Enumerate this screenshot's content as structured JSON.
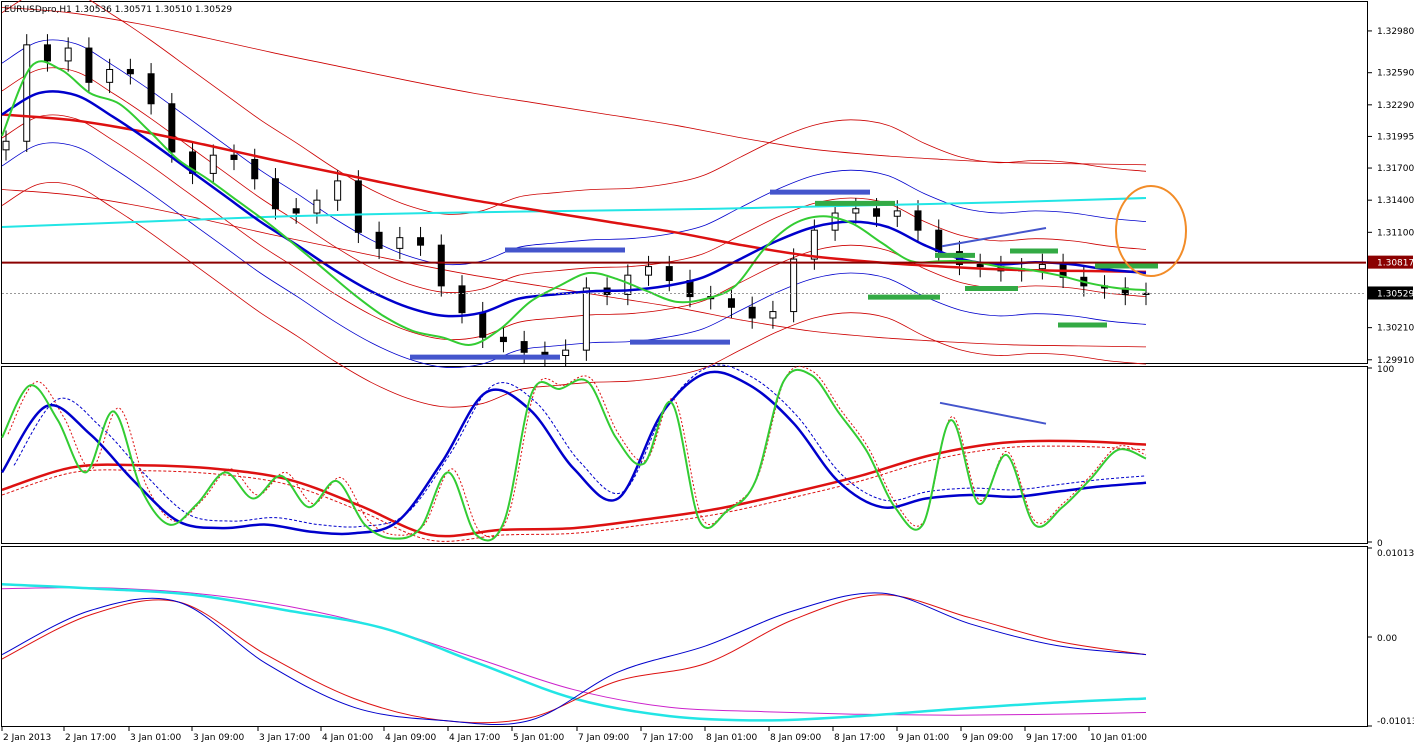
{
  "window": {
    "symbol_line": "EURUSDpro,H1  1.30536 1.30571 1.30510 1.30529"
  },
  "colors": {
    "background": "#ffffff",
    "frame": "#000000",
    "bull_candle": "#ffffff",
    "bear_candle": "#000000",
    "green_line": "#33cc33",
    "blue_line": "#0000cc",
    "red_line": "#dd1111",
    "thin_red": "#cc0000",
    "thin_blue": "#0000cc",
    "cyan_line": "#22e5e5",
    "magenta_line": "#cc22cc",
    "resistance_line": "#8b0000",
    "orange_circle": "#f28c28",
    "marker_blue": "#4455cc",
    "marker_green": "#33aa44",
    "price_tag_bg": "#000000",
    "level_tag_bg": "#8b0000"
  },
  "chart_data": [
    {
      "type": "line",
      "panel": "price",
      "title": "EURUSDpro,H1  1.30536 1.30571 1.30510 1.30529",
      "y_ticks": [
        "1.32980",
        "1.32590",
        "1.32290",
        "1.31995",
        "1.31700",
        "1.31400",
        "1.31100",
        "1.30817",
        "1.30529",
        "1.30210",
        "1.29910"
      ],
      "y_tick_values": [
        1.3298,
        1.3259,
        1.3229,
        1.31995,
        1.317,
        1.314,
        1.311,
        1.30817,
        1.30529,
        1.3021,
        1.2991
      ],
      "ylim": [
        1.2988,
        1.3325
      ],
      "current_price": "1.30529",
      "marked_level": "1.30817",
      "x_tick_labels": [
        "2 Jan 2013",
        "2 Jan 17:00",
        "3 Jan 01:00",
        "3 Jan 09:00",
        "3 Jan 17:00",
        "4 Jan 01:00",
        "4 Jan 09:00",
        "4 Jan 17:00",
        "5 Jan 01:00",
        "7 Jan 09:00",
        "7 Jan 17:00",
        "8 Jan 01:00",
        "8 Jan 09:00",
        "8 Jan 17:00",
        "9 Jan 01:00",
        "9 Jan 09:00",
        "9 Jan 17:00",
        "10 Jan 01:00"
      ],
      "close_prices": [
        1.3195,
        1.3285,
        1.327,
        1.3282,
        1.325,
        1.3262,
        1.3258,
        1.323,
        1.3185,
        1.3165,
        1.3182,
        1.3178,
        1.316,
        1.3132,
        1.3128,
        1.314,
        1.3158,
        1.311,
        1.3095,
        1.3105,
        1.3098,
        1.306,
        1.3035,
        1.3012,
        1.3008,
        1.2998,
        1.2995,
        1.3,
        1.3058,
        1.3052,
        1.307,
        1.3078,
        1.3065,
        1.305,
        1.3048,
        1.304,
        1.303,
        1.3036,
        1.3085,
        1.3112,
        1.3128,
        1.3132,
        1.3125,
        1.313,
        1.3112,
        1.3092,
        1.308,
        1.3078,
        1.3074,
        1.3076,
        1.308,
        1.3068,
        1.306,
        1.3058,
        1.3052,
        1.3053
      ],
      "series": [
        {
          "name": "",
          "role": "green",
          "values": [
            1.32,
            1.3265,
            1.3262,
            1.324,
            1.323,
            1.3205,
            1.3178,
            1.316,
            1.314,
            1.312,
            1.3098,
            1.3075,
            1.3052,
            1.3032,
            1.3018,
            1.3012,
            1.3005,
            1.302,
            1.3045,
            1.306,
            1.3072,
            1.3066,
            1.3055,
            1.3045,
            1.3048,
            1.306,
            1.3095,
            1.3118,
            1.3125,
            1.3118,
            1.31,
            1.3083,
            1.3083,
            1.3083,
            1.3078,
            1.3075,
            1.307,
            1.3063,
            1.3058,
            1.3056
          ]
        },
        {
          "name": "",
          "role": "blue",
          "values": [
            1.322,
            1.324,
            1.3238,
            1.3218,
            1.3195,
            1.317,
            1.3145,
            1.312,
            1.3098,
            1.3075,
            1.3055,
            1.304,
            1.3032,
            1.3035,
            1.3048,
            1.3052,
            1.3055,
            1.3056,
            1.306,
            1.3068,
            1.3085,
            1.3102,
            1.3115,
            1.312,
            1.3115,
            1.3098,
            1.3085,
            1.308,
            1.3082,
            1.308,
            1.3075,
            1.3072
          ]
        },
        {
          "name": "",
          "role": "red",
          "values": [
            1.322,
            1.3215,
            1.3205,
            1.3192,
            1.3178,
            1.3165,
            1.3152,
            1.314,
            1.313,
            1.312,
            1.311,
            1.3098,
            1.3088,
            1.3082,
            1.3078,
            1.3075,
            1.3074,
            1.3073
          ]
        },
        {
          "name": "",
          "role": "cyan",
          "values": [
            1.3115,
            1.312,
            1.3125,
            1.3128,
            1.313,
            1.3132,
            1.3135,
            1.3138,
            1.3142
          ]
        }
      ]
    },
    {
      "type": "line",
      "panel": "oscillator",
      "y_ticks": [
        "100",
        "0"
      ],
      "ylim": [
        0,
        100
      ],
      "series": [
        {
          "name": "",
          "role": "green",
          "values": [
            60,
            90,
            70,
            40,
            75,
            30,
            10,
            22,
            40,
            25,
            38,
            20,
            35,
            10,
            2,
            8,
            40,
            4,
            12,
            86,
            88,
            92,
            60,
            45,
            80,
            12,
            18,
            35,
            92,
            96,
            74,
            52,
            20,
            10,
            70,
            22,
            50,
            10,
            20,
            36,
            53,
            48
          ]
        },
        {
          "name": "",
          "role": "blue",
          "values": [
            40,
            78,
            62,
            35,
            12,
            8,
            10,
            6,
            5,
            12,
            46,
            86,
            76,
            42,
            25,
            74,
            97,
            90,
            68,
            35,
            20,
            25,
            27,
            26,
            29,
            32,
            34
          ]
        },
        {
          "name": "",
          "role": "red",
          "values": [
            30,
            43,
            44,
            42,
            36,
            21,
            4,
            7,
            8,
            13,
            19,
            28,
            38,
            50,
            57,
            58,
            56
          ]
        }
      ]
    },
    {
      "type": "line",
      "panel": "macd",
      "y_ticks": [
        "0.010132",
        "0.00",
        "-0.010132"
      ],
      "ylim": [
        -0.010132,
        0.010132
      ],
      "series": [
        {
          "name": "",
          "role": "cyan",
          "values": [
            0.006,
            0.0055,
            0.0048,
            0.003,
            0.001,
            -0.003,
            -0.007,
            -0.009,
            -0.0095,
            -0.009,
            -0.0082,
            -0.0075,
            -0.007
          ]
        },
        {
          "name": "",
          "role": "magenta",
          "values": [
            0.0055,
            0.0056,
            0.005,
            0.0035,
            0.001,
            -0.0025,
            -0.006,
            -0.008,
            -0.0085,
            -0.0088,
            -0.0089,
            -0.0088,
            -0.0086
          ]
        },
        {
          "name": "",
          "role": "blue",
          "values": [
            -0.002,
            0.003,
            0.004,
            -0.003,
            -0.008,
            -0.0095,
            -0.0095,
            -0.004,
            -0.001,
            0.003,
            0.005,
            0.0015,
            -0.001,
            -0.002
          ]
        },
        {
          "name": "",
          "role": "red",
          "values": [
            -0.0025,
            0.0025,
            0.004,
            -0.002,
            -0.007,
            -0.0095,
            -0.0092,
            -0.005,
            -0.003,
            0.002,
            0.0048,
            0.0022,
            -0.0005,
            -0.002
          ]
        }
      ]
    }
  ]
}
